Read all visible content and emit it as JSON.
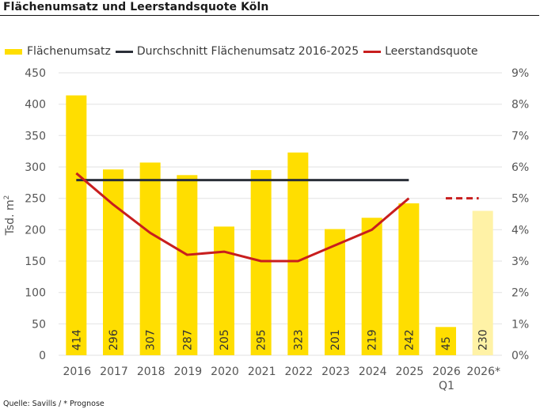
{
  "title": "Flächenumsatz und Leerstandsquote Köln",
  "source": "Quelle: Savills / * Prognose",
  "colors": {
    "bar": "#FFDE00",
    "bar_forecast": "#FFF2A6",
    "average_line": "#2B2F38",
    "vacancy_line": "#C81E1E",
    "grid": "#E6E6E6",
    "axis_text": "#555555"
  },
  "legend": [
    {
      "label": "Flächenumsatz",
      "type": "bar",
      "color": "#FFDE00"
    },
    {
      "label": "Durchschnitt Flächenumsatz 2016-2025",
      "type": "line",
      "color": "#2B2F38"
    },
    {
      "label": "Leerstandsquote",
      "type": "line",
      "color": "#C81E1E"
    }
  ],
  "chart_data": {
    "type": "bar",
    "title": "Flächenumsatz und Leerstandsquote Köln",
    "categories": [
      "2016",
      "2017",
      "2018",
      "2019",
      "2020",
      "2021",
      "2022",
      "2023",
      "2024",
      "2025",
      "2026\nQ1",
      "2026*"
    ],
    "category_lines": [
      [
        "2016"
      ],
      [
        "2017"
      ],
      [
        "2018"
      ],
      [
        "2019"
      ],
      [
        "2020"
      ],
      [
        "2021"
      ],
      [
        "2022"
      ],
      [
        "2023"
      ],
      [
        "2024"
      ],
      [
        "2025"
      ],
      [
        "2026",
        "Q1"
      ],
      [
        "2026*"
      ]
    ],
    "series": [
      {
        "name": "Flächenumsatz",
        "type": "bar",
        "axis": "left",
        "values": [
          414,
          296,
          307,
          287,
          205,
          295,
          323,
          201,
          219,
          242,
          45,
          230
        ],
        "labels": [
          "414",
          "296",
          "307",
          "287",
          "205",
          "295",
          "323",
          "201",
          "219",
          "242",
          "45",
          "230"
        ],
        "forecast": [
          false,
          false,
          false,
          false,
          false,
          false,
          false,
          false,
          false,
          false,
          false,
          true
        ]
      },
      {
        "name": "Durchschnitt Flächenumsatz 2016-2025",
        "type": "line",
        "axis": "left",
        "x_range": [
          "2016",
          "2025"
        ],
        "value": 279
      },
      {
        "name": "Leerstandsquote",
        "type": "line",
        "axis": "right",
        "unit": "%",
        "values": [
          5.8,
          4.8,
          3.9,
          3.2,
          3.3,
          3.0,
          3.0,
          3.5,
          4.0,
          5.0,
          5.0,
          5.0
        ],
        "dashed_segments": [
          [
            10,
            11
          ]
        ]
      }
    ],
    "ylabel": "Tsd. m²",
    "ylabel_main": "Tsd. m",
    "ylabel_sup": "2",
    "ylim": [
      0,
      450
    ],
    "yticks": [
      0,
      50,
      100,
      150,
      200,
      250,
      300,
      350,
      400,
      450
    ],
    "ytick_labels": [
      "0",
      "50",
      "100",
      "150",
      "200",
      "250",
      "300",
      "350",
      "400",
      "450"
    ],
    "y2lim": [
      0,
      9
    ],
    "y2ticks": [
      0,
      1,
      2,
      3,
      4,
      5,
      6,
      7,
      8,
      9
    ],
    "y2tick_labels": [
      "0%",
      "1%",
      "2%",
      "3%",
      "4%",
      "5%",
      "6%",
      "7%",
      "8%",
      "9%"
    ],
    "xlabel": "",
    "grid": true,
    "legend_position": "top"
  }
}
